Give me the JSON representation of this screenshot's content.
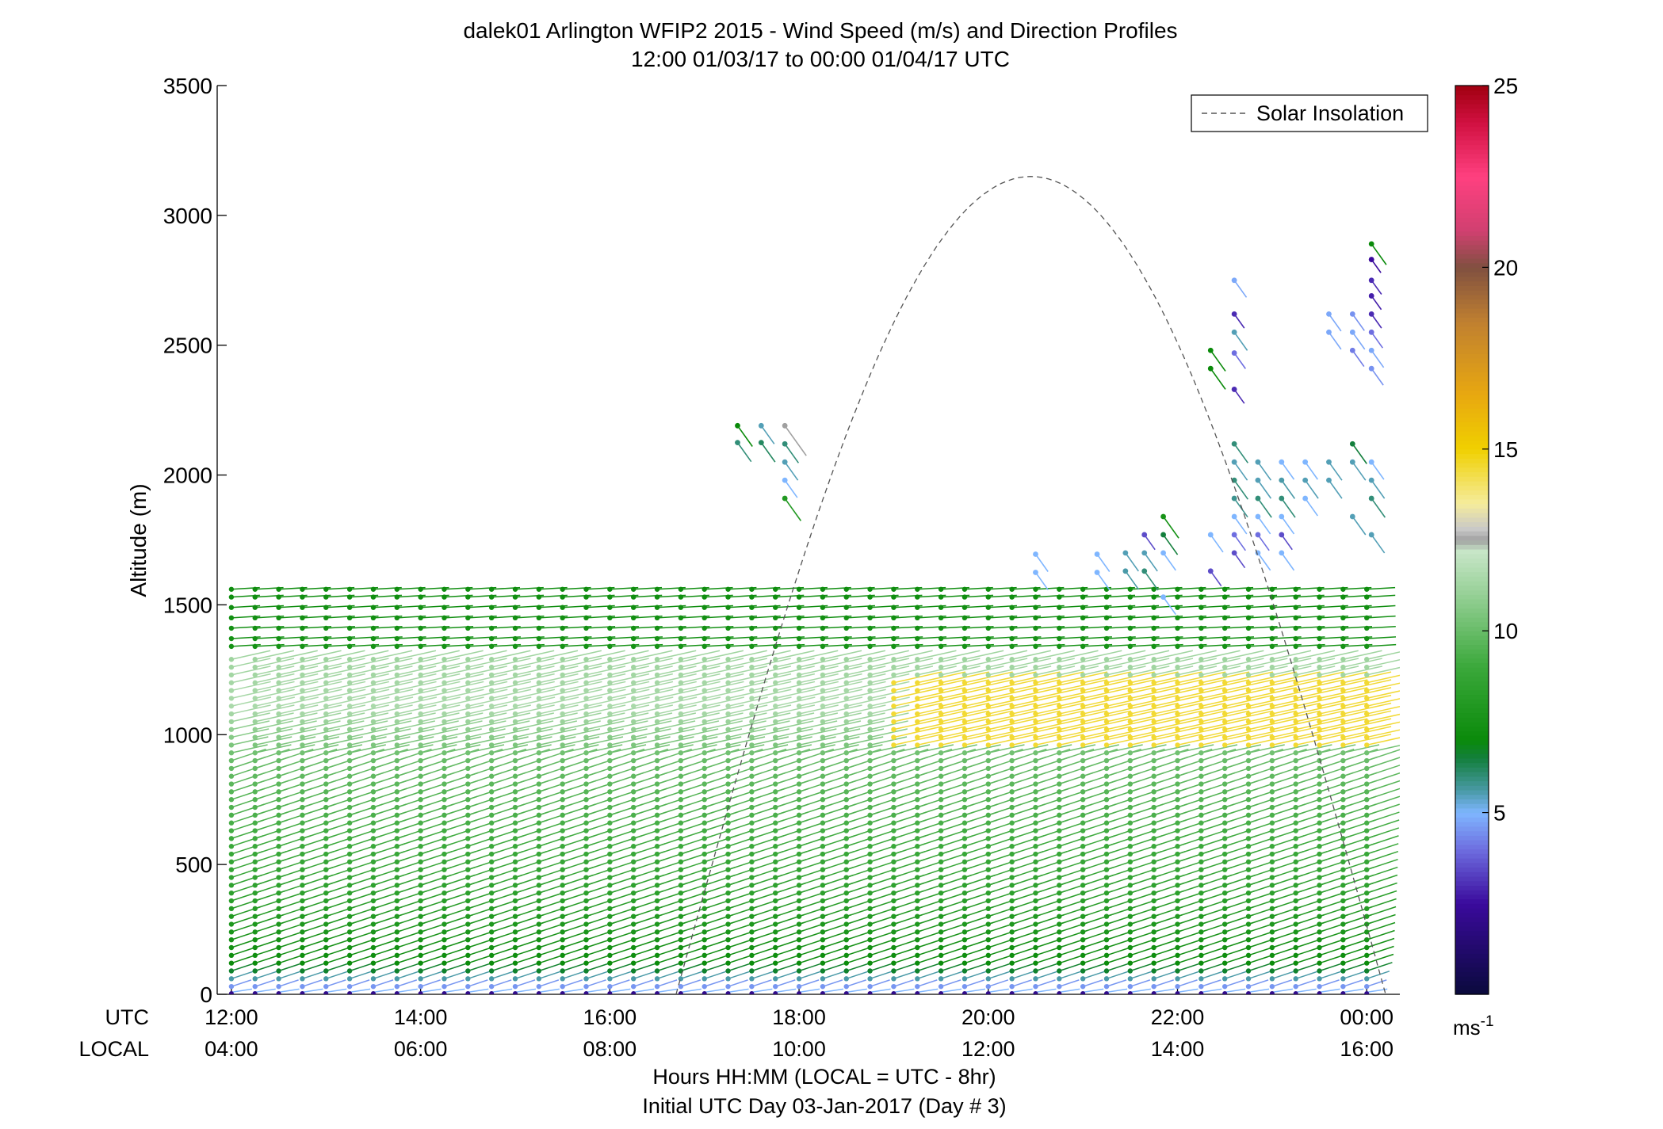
{
  "chart_data": {
    "type": "wind-profile",
    "title": "dalek01 Arlington WFIP2 2015 - Wind Speed (m/s) and Direction Profiles",
    "subtitle": "12:00 01/03/17 to 00:00 01/04/17  UTC",
    "ylabel": "Altitude (m)",
    "xlabel": "Hours HH:MM  (LOCAL = UTC - 8hr)",
    "xlabel2": "Initial UTC Day 03-Jan-2017 (Day # 3)",
    "x_row_label_utc": "UTC",
    "x_row_label_local": "LOCAL",
    "ylim": [
      0,
      3500
    ],
    "yticks": [
      0,
      500,
      1000,
      1500,
      2000,
      2500,
      3000,
      3500
    ],
    "xlim_hours": [
      11.85,
      24.35
    ],
    "xticks_hours": [
      12,
      14,
      16,
      18,
      20,
      22,
      24
    ],
    "xtick_labels_utc": [
      "12:00",
      "14:00",
      "16:00",
      "18:00",
      "20:00",
      "22:00",
      "00:00"
    ],
    "xtick_labels_local": [
      "04:00",
      "06:00",
      "08:00",
      "10:00",
      "12:00",
      "14:00",
      "16:00"
    ],
    "legend": {
      "entry": "Solar Insolation",
      "position": "top-right",
      "line_color": "#7f7f7f",
      "line_style": "dashed"
    },
    "colorbar": {
      "label": "ms",
      "label_sup": "-1",
      "range": [
        0,
        25
      ],
      "ticks": [
        "5",
        "10",
        "15",
        "20",
        "25"
      ],
      "stops": [
        {
          "v": 0,
          "c": "#0a0a3c"
        },
        {
          "v": 2.5,
          "c": "#3a0a9c"
        },
        {
          "v": 4,
          "c": "#6e6ee0"
        },
        {
          "v": 5,
          "c": "#7fb6ff"
        },
        {
          "v": 5.6,
          "c": "#4a9aa8"
        },
        {
          "v": 6.5,
          "c": "#137f3c"
        },
        {
          "v": 7,
          "c": "#0a8a0a"
        },
        {
          "v": 9,
          "c": "#3aa83a"
        },
        {
          "v": 11,
          "c": "#96d096"
        },
        {
          "v": 12.2,
          "c": "#c8e6c8"
        },
        {
          "v": 12.5,
          "c": "#a0a0a0"
        },
        {
          "v": 12.8,
          "c": "#c8c8c8"
        },
        {
          "v": 13.5,
          "c": "#f5ec9c"
        },
        {
          "v": 15,
          "c": "#f0d000"
        },
        {
          "v": 16.5,
          "c": "#e8a810"
        },
        {
          "v": 18.5,
          "c": "#c08030"
        },
        {
          "v": 20,
          "c": "#805040"
        },
        {
          "v": 21,
          "c": "#d04070"
        },
        {
          "v": 22.5,
          "c": "#ff4080"
        },
        {
          "v": 24,
          "c": "#d01040"
        },
        {
          "v": 25,
          "c": "#a00010"
        }
      ]
    },
    "solar_insolation": {
      "rise_hour": 16.7,
      "set_hour": 24.2,
      "peak_hour": 19.95,
      "peak_altitude_m": 3150
    },
    "profile_times_hours": {
      "start": 12.0,
      "end": 24.0,
      "step": 0.25
    },
    "profile_levels": {
      "low_start_m": 30,
      "low_end_m": 1300,
      "low_step_m": 30,
      "upper_levels_m": [
        1340,
        1370,
        1410,
        1450,
        1490,
        1530,
        1560
      ]
    },
    "speed_profile_ms": [
      {
        "alt_m": 0,
        "speed": 3.5
      },
      {
        "alt_m": 100,
        "speed": 7.0
      },
      {
        "alt_m": 400,
        "speed": 8.5
      },
      {
        "alt_m": 900,
        "speed": 10.0
      },
      {
        "alt_m": 1100,
        "speed": 11.5
      },
      {
        "alt_m": 1300,
        "speed": 11.2
      },
      {
        "alt_m": 1340,
        "speed": 7.5
      },
      {
        "alt_m": 1560,
        "speed": 7.2
      }
    ],
    "strong_jet_core": {
      "hours": [
        19.0,
        24.0
      ],
      "alt_m": [
        950,
        1220
      ],
      "speed_ms": 14.5
    },
    "sparse_upper_profiles": [
      {
        "hour": 17.35,
        "points": [
          {
            "alt": 2190,
            "spd": 7
          },
          {
            "alt": 2125,
            "spd": 6
          }
        ]
      },
      {
        "hour": 17.6,
        "points": [
          {
            "alt": 2190,
            "spd": 5.5
          },
          {
            "alt": 2125,
            "spd": 6.2
          }
        ]
      },
      {
        "hour": 17.85,
        "points": [
          {
            "alt": 2190,
            "spd": 12.5
          },
          {
            "alt": 2120,
            "spd": 6
          },
          {
            "alt": 2050,
            "spd": 5.5
          },
          {
            "alt": 1980,
            "spd": 5
          },
          {
            "alt": 1910,
            "spd": 8
          }
        ]
      },
      {
        "hour": 20.5,
        "points": [
          {
            "alt": 1695,
            "spd": 5
          },
          {
            "alt": 1625,
            "spd": 5
          }
        ]
      },
      {
        "hour": 21.15,
        "points": [
          {
            "alt": 1695,
            "spd": 5
          },
          {
            "alt": 1625,
            "spd": 5
          }
        ]
      },
      {
        "hour": 21.45,
        "points": [
          {
            "alt": 1700,
            "spd": 5.5
          },
          {
            "alt": 1630,
            "spd": 5.6
          }
        ]
      },
      {
        "hour": 21.65,
        "points": [
          {
            "alt": 1770,
            "spd": 3.5
          },
          {
            "alt": 1700,
            "spd": 5.5
          },
          {
            "alt": 1630,
            "spd": 6
          }
        ]
      },
      {
        "hour": 21.85,
        "points": [
          {
            "alt": 1840,
            "spd": 7.5
          },
          {
            "alt": 1770,
            "spd": 6.5
          },
          {
            "alt": 1700,
            "spd": 5
          },
          {
            "alt": 1530,
            "spd": 5
          }
        ]
      },
      {
        "hour": 22.35,
        "points": [
          {
            "alt": 2480,
            "spd": 7
          },
          {
            "alt": 2410,
            "spd": 7
          },
          {
            "alt": 1770,
            "spd": 5
          },
          {
            "alt": 1630,
            "spd": 3.5
          }
        ]
      },
      {
        "hour": 22.6,
        "points": [
          {
            "alt": 2750,
            "spd": 4.8
          },
          {
            "alt": 2620,
            "spd": 3
          },
          {
            "alt": 2550,
            "spd": 5.5
          },
          {
            "alt": 2470,
            "spd": 4
          },
          {
            "alt": 2330,
            "spd": 3
          },
          {
            "alt": 2120,
            "spd": 6
          },
          {
            "alt": 2050,
            "spd": 5.5
          },
          {
            "alt": 1980,
            "spd": 6
          },
          {
            "alt": 1910,
            "spd": 5.8
          },
          {
            "alt": 1840,
            "spd": 5
          },
          {
            "alt": 1770,
            "spd": 4
          },
          {
            "alt": 1700,
            "spd": 3.5
          }
        ]
      },
      {
        "hour": 22.85,
        "points": [
          {
            "alt": 2050,
            "spd": 5.5
          },
          {
            "alt": 1980,
            "spd": 5.5
          },
          {
            "alt": 1910,
            "spd": 6
          },
          {
            "alt": 1840,
            "spd": 5
          },
          {
            "alt": 1770,
            "spd": 4
          },
          {
            "alt": 1700,
            "spd": 5
          }
        ]
      },
      {
        "hour": 23.1,
        "points": [
          {
            "alt": 2050,
            "spd": 5
          },
          {
            "alt": 1980,
            "spd": 5.6
          },
          {
            "alt": 1910,
            "spd": 6
          },
          {
            "alt": 1840,
            "spd": 5
          },
          {
            "alt": 1770,
            "spd": 3.5
          },
          {
            "alt": 1700,
            "spd": 5
          }
        ]
      },
      {
        "hour": 23.35,
        "points": [
          {
            "alt": 2050,
            "spd": 5
          },
          {
            "alt": 1980,
            "spd": 5.5
          },
          {
            "alt": 1910,
            "spd": 5
          }
        ]
      },
      {
        "hour": 23.6,
        "points": [
          {
            "alt": 2620,
            "spd": 4.8
          },
          {
            "alt": 2550,
            "spd": 4.8
          },
          {
            "alt": 2050,
            "spd": 5.5
          },
          {
            "alt": 1980,
            "spd": 5.5
          }
        ]
      },
      {
        "hour": 23.85,
        "points": [
          {
            "alt": 2620,
            "spd": 4.5
          },
          {
            "alt": 2550,
            "spd": 4.8
          },
          {
            "alt": 2480,
            "spd": 4.2
          },
          {
            "alt": 2120,
            "spd": 6.5
          },
          {
            "alt": 2050,
            "spd": 5.5
          },
          {
            "alt": 1840,
            "spd": 5.5
          }
        ]
      },
      {
        "hour": 24.05,
        "points": [
          {
            "alt": 2890,
            "spd": 7
          },
          {
            "alt": 2830,
            "spd": 2.5
          },
          {
            "alt": 2750,
            "spd": 3
          },
          {
            "alt": 2690,
            "spd": 2.8
          },
          {
            "alt": 2620,
            "spd": 3
          },
          {
            "alt": 2550,
            "spd": 4
          },
          {
            "alt": 2480,
            "spd": 4.8
          },
          {
            "alt": 2410,
            "spd": 4.5
          },
          {
            "alt": 2050,
            "spd": 5
          },
          {
            "alt": 1980,
            "spd": 5.5
          },
          {
            "alt": 1910,
            "spd": 6
          },
          {
            "alt": 1770,
            "spd": 5.5
          }
        ]
      }
    ]
  }
}
